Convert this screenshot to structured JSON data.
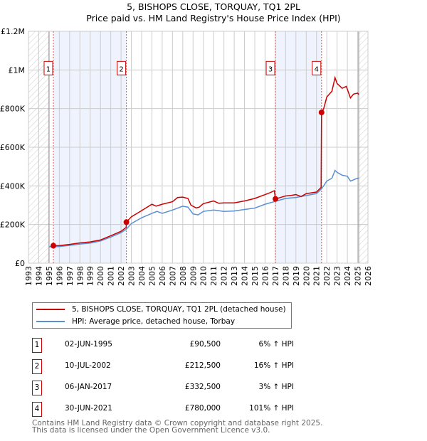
{
  "chart_data": {
    "type": "line",
    "title": "5, BISHOPS CLOSE, TORQUAY, TQ1 2PL",
    "subtitle": "Price paid vs. HM Land Registry's House Price Index (HPI)",
    "xlim": [
      1993,
      2026
    ],
    "ylim": [
      0,
      1200000
    ],
    "y_ticks": [
      {
        "v": 0,
        "label": "£0"
      },
      {
        "v": 200000,
        "label": "£200K"
      },
      {
        "v": 400000,
        "label": "£400K"
      },
      {
        "v": 600000,
        "label": "£600K"
      },
      {
        "v": 800000,
        "label": "£800K"
      },
      {
        "v": 1000000,
        "label": "£1M"
      },
      {
        "v": 1200000,
        "label": "£1.2M"
      }
    ],
    "x_ticks": [
      "1993",
      "1994",
      "1995",
      "1996",
      "1997",
      "1998",
      "1999",
      "2000",
      "2001",
      "2002",
      "2003",
      "2004",
      "2005",
      "2006",
      "2007",
      "2008",
      "2009",
      "2010",
      "2011",
      "2012",
      "2013",
      "2014",
      "2015",
      "2016",
      "2017",
      "2018",
      "2019",
      "2020",
      "2021",
      "2022",
      "2023",
      "2024",
      "2025",
      "2026"
    ],
    "grid": true,
    "hatched_ranges": [
      [
        1993,
        1995
      ],
      [
        2025.1,
        2026
      ]
    ],
    "shaded_ranges": [
      [
        1995.42,
        2002.52
      ],
      [
        2017.01,
        2021.49
      ]
    ],
    "series": [
      {
        "name": "5, BISHOPS CLOSE, TORQUAY, TQ1 2PL (detached house)",
        "color": "#cc0000",
        "x": [
          1995.42,
          1996,
          1997,
          1998,
          1999,
          2000,
          2001,
          2002,
          2002.5,
          2002.52,
          2003,
          2004,
          2005,
          2005.4,
          2006,
          2007,
          2007.5,
          2008,
          2008.5,
          2008.8,
          2009.3,
          2009.6,
          2010,
          2011,
          2011.5,
          2012,
          2013,
          2014,
          2015,
          2016,
          2016.5,
          2016.9,
          2017.01,
          2018,
          2018.5,
          2019,
          2019.5,
          2020,
          2021,
          2021.45,
          2021.49,
          2021.7,
          2022,
          2022.5,
          2022.8,
          2023,
          2023.5,
          2023.9,
          2024.3,
          2024.6,
          2025,
          2025.1
        ],
        "y": [
          90500,
          91000,
          97000,
          105000,
          110000,
          120000,
          142000,
          165000,
          185000,
          212500,
          240000,
          272000,
          305000,
          295000,
          305000,
          318000,
          340000,
          342000,
          335000,
          300000,
          286000,
          290000,
          308000,
          322000,
          310000,
          312000,
          312000,
          322000,
          335000,
          355000,
          365000,
          375000,
          332500,
          348000,
          350000,
          355000,
          345000,
          360000,
          368000,
          392000,
          780000,
          800000,
          860000,
          890000,
          960000,
          930000,
          905000,
          915000,
          855000,
          875000,
          880000,
          872000
        ]
      },
      {
        "name": "HPI: Average price, detached house, Torbay",
        "color": "#5b8fd4",
        "x": [
          1995,
          1996,
          1997,
          1998,
          1999,
          2000,
          2001,
          2002,
          2002.5,
          2003,
          2004,
          2005,
          2005.5,
          2006,
          2007,
          2008,
          2008.5,
          2009,
          2009.5,
          2010,
          2011,
          2012,
          2013,
          2014,
          2015,
          2016,
          2017,
          2018,
          2019,
          2020,
          2021,
          2021.5,
          2022,
          2022.5,
          2022.8,
          2023,
          2023.5,
          2024,
          2024.3,
          2025,
          2025.1
        ],
        "y": [
          85000,
          86000,
          92000,
          99000,
          104000,
          115000,
          135000,
          158000,
          175000,
          205000,
          235000,
          258000,
          268000,
          258000,
          275000,
          295000,
          290000,
          255000,
          250000,
          268000,
          275000,
          268000,
          270000,
          278000,
          285000,
          305000,
          320000,
          335000,
          340000,
          350000,
          360000,
          385000,
          425000,
          440000,
          480000,
          470000,
          455000,
          450000,
          425000,
          440000,
          438000
        ]
      }
    ],
    "sales": [
      {
        "n": "1",
        "x": 1995.42,
        "price": 90500,
        "date": "02-JUN-1995",
        "price_label": "£90,500",
        "hpi": "6% ↑ HPI"
      },
      {
        "n": "2",
        "x": 2002.52,
        "price": 212500,
        "date": "10-JUL-2002",
        "price_label": "£212,500",
        "hpi": "16% ↑ HPI"
      },
      {
        "n": "3",
        "x": 2017.01,
        "price": 332500,
        "date": "06-JAN-2017",
        "price_label": "£332,500",
        "hpi": "3% ↑ HPI"
      },
      {
        "n": "4",
        "x": 2021.49,
        "price": 780000,
        "date": "30-JUN-2021",
        "price_label": "£780,000",
        "hpi": "101% ↑ HPI"
      }
    ]
  },
  "legend": {
    "red": "5, BISHOPS CLOSE, TORQUAY, TQ1 2PL (detached house)",
    "blue": "HPI: Average price, detached house, Torbay"
  },
  "footer": {
    "line1": "Contains HM Land Registry data © Crown copyright and database right 2025.",
    "line2": "This data is licensed under the Open Government Licence v3.0."
  }
}
